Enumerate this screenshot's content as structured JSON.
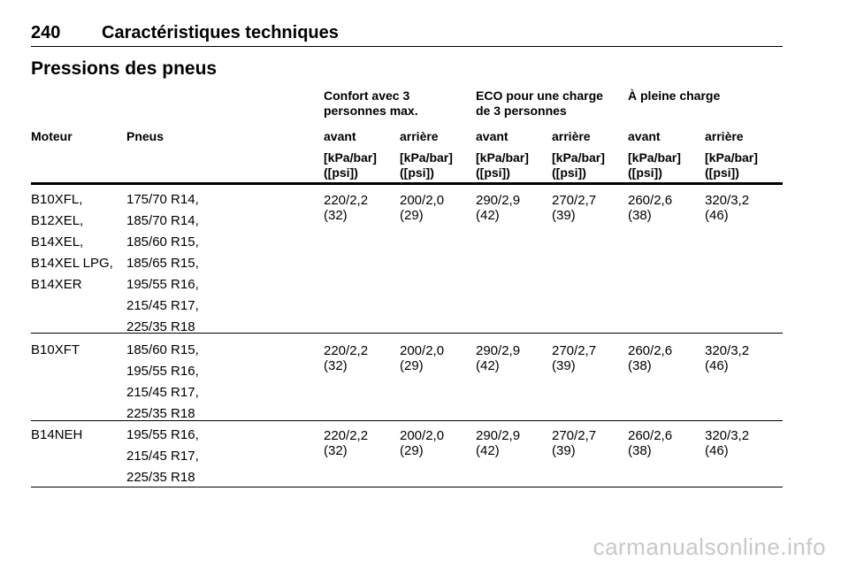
{
  "header": {
    "page_number": "240",
    "chapter": "Caractéristiques techniques"
  },
  "section_title": "Pressions des pneus",
  "table": {
    "groups": [
      {
        "l1": "Confort avec 3",
        "l2": "personnes max."
      },
      {
        "l1": "ECO pour une charge",
        "l2": "de 3 personnes"
      },
      {
        "l1": "À pleine charge",
        "l2": ""
      }
    ],
    "columns": [
      "Moteur",
      "Pneus",
      "avant",
      "arrière",
      "avant",
      "arrière",
      "avant",
      "arrière"
    ],
    "units": [
      {
        "l1": "[kPa/bar]",
        "l2": "([psi])"
      },
      {
        "l1": "[kPa/bar]",
        "l2": "([psi])"
      },
      {
        "l1": "[kPa/bar]",
        "l2": "([psi])"
      },
      {
        "l1": "[kPa/bar]",
        "l2": "([psi])"
      },
      {
        "l1": "[kPa/bar]",
        "l2": "([psi])"
      },
      {
        "l1": "[kPa/bar]",
        "l2": "([psi])"
      }
    ],
    "rows": [
      {
        "engines": [
          "B10XFL,",
          "B12XEL,",
          "B14XEL,",
          "B14XEL LPG,",
          "B14XER"
        ],
        "tyres": [
          "175/70 R14,",
          "185/70 R14,",
          "185/60 R15,",
          "185/65 R15,",
          "195/55 R16,",
          "215/45 R17,",
          "225/35 R18"
        ],
        "pressures": [
          {
            "kpa": "220/2,2",
            "psi": "(32)"
          },
          {
            "kpa": "200/2,0",
            "psi": "(29)"
          },
          {
            "kpa": "290/2,9",
            "psi": "(42)"
          },
          {
            "kpa": "270/2,7",
            "psi": "(39)"
          },
          {
            "kpa": "260/2,6",
            "psi": "(38)"
          },
          {
            "kpa": "320/3,2",
            "psi": "(46)"
          }
        ]
      },
      {
        "engines": [
          "B10XFT"
        ],
        "tyres": [
          "185/60 R15,",
          "195/55 R16,",
          "215/45 R17,",
          "225/35 R18"
        ],
        "pressures": [
          {
            "kpa": "220/2,2",
            "psi": "(32)"
          },
          {
            "kpa": "200/2,0",
            "psi": "(29)"
          },
          {
            "kpa": "290/2,9",
            "psi": "(42)"
          },
          {
            "kpa": "270/2,7",
            "psi": "(39)"
          },
          {
            "kpa": "260/2,6",
            "psi": "(38)"
          },
          {
            "kpa": "320/3,2",
            "psi": "(46)"
          }
        ]
      },
      {
        "engines": [
          "B14NEH"
        ],
        "tyres": [
          "195/55 R16,",
          "215/45 R17,",
          "225/35 R18"
        ],
        "pressures": [
          {
            "kpa": "220/2,2",
            "psi": "(32)"
          },
          {
            "kpa": "200/2,0",
            "psi": "(29)"
          },
          {
            "kpa": "290/2,9",
            "psi": "(42)"
          },
          {
            "kpa": "270/2,7",
            "psi": "(39)"
          },
          {
            "kpa": "260/2,6",
            "psi": "(38)"
          },
          {
            "kpa": "320/3,2",
            "psi": "(46)"
          }
        ]
      }
    ]
  },
  "watermark": "carmanualsonline.info"
}
